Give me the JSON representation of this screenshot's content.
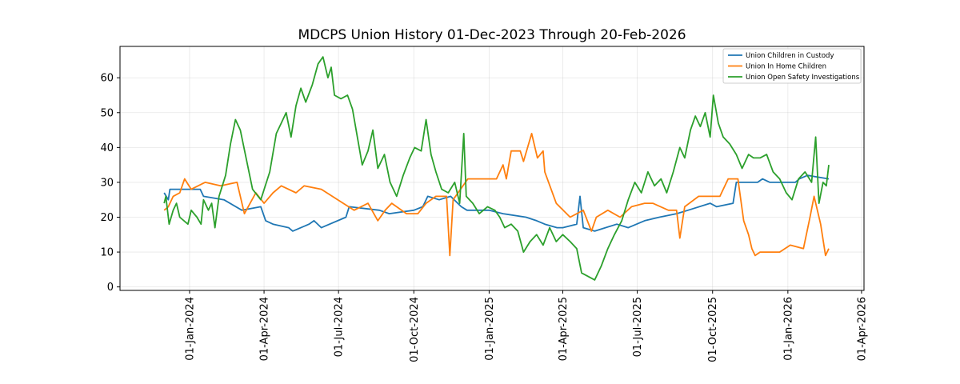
{
  "chart_data": {
    "type": "line",
    "title": "MDCPS Union History 01-Dec-2023 Through 20-Feb-2026",
    "xlabel": "",
    "ylabel": "",
    "x_axis": "date",
    "xlim": [
      "2023-10-08",
      "2026-04-04"
    ],
    "ylim": [
      -1,
      69
    ],
    "y_ticks": [
      0,
      10,
      20,
      30,
      40,
      50,
      60
    ],
    "x_ticks": [
      {
        "date": "2024-01-01",
        "label": "01-Jan-2024"
      },
      {
        "date": "2024-04-01",
        "label": "01-Apr-2024"
      },
      {
        "date": "2024-07-01",
        "label": "01-Jul-2024"
      },
      {
        "date": "2024-10-01",
        "label": "01-Oct-2024"
      },
      {
        "date": "2025-01-01",
        "label": "01-Jan-2025"
      },
      {
        "date": "2025-04-01",
        "label": "01-Apr-2025"
      },
      {
        "date": "2025-07-01",
        "label": "01-Jul-2025"
      },
      {
        "date": "2025-10-01",
        "label": "01-Oct-2025"
      },
      {
        "date": "2026-01-01",
        "label": "01-Jan-2026"
      },
      {
        "date": "2026-04-01",
        "label": "01-Apr-2026"
      }
    ],
    "grid": true,
    "legend_position": "top-right",
    "series": [
      {
        "name": "Union Children in Custody",
        "color": "#1f77b4",
        "points": [
          [
            "2023-12-01",
            27
          ],
          [
            "2023-12-06",
            25
          ],
          [
            "2023-12-08",
            28
          ],
          [
            "2024-01-01",
            28
          ],
          [
            "2024-01-14",
            28
          ],
          [
            "2024-01-18",
            26
          ],
          [
            "2024-02-12",
            25
          ],
          [
            "2024-03-05",
            22
          ],
          [
            "2024-03-28",
            23
          ],
          [
            "2024-04-03",
            19
          ],
          [
            "2024-04-12",
            18
          ],
          [
            "2024-05-01",
            17
          ],
          [
            "2024-05-06",
            16
          ],
          [
            "2024-05-16",
            17
          ],
          [
            "2024-05-26",
            18
          ],
          [
            "2024-06-01",
            19
          ],
          [
            "2024-06-10",
            17
          ],
          [
            "2024-07-10",
            20
          ],
          [
            "2024-07-14",
            23
          ],
          [
            "2024-08-20",
            22
          ],
          [
            "2024-09-01",
            21
          ],
          [
            "2024-10-01",
            22
          ],
          [
            "2024-10-12",
            23
          ],
          [
            "2024-10-18",
            26
          ],
          [
            "2024-11-01",
            25
          ],
          [
            "2024-11-15",
            26
          ],
          [
            "2024-11-28",
            23
          ],
          [
            "2024-12-05",
            22
          ],
          [
            "2025-01-01",
            22
          ],
          [
            "2025-01-18",
            21
          ],
          [
            "2025-02-15",
            20
          ],
          [
            "2025-02-28",
            19
          ],
          [
            "2025-03-10",
            18
          ],
          [
            "2025-03-25",
            17
          ],
          [
            "2025-04-01",
            17
          ],
          [
            "2025-04-18",
            18
          ],
          [
            "2025-04-22",
            26
          ],
          [
            "2025-04-26",
            17
          ],
          [
            "2025-05-10",
            16
          ],
          [
            "2025-06-06",
            18
          ],
          [
            "2025-06-20",
            17
          ],
          [
            "2025-07-10",
            19
          ],
          [
            "2025-07-28",
            20
          ],
          [
            "2025-08-18",
            21
          ],
          [
            "2025-09-01",
            22
          ],
          [
            "2025-09-28",
            24
          ],
          [
            "2025-10-06",
            23
          ],
          [
            "2025-10-26",
            24
          ],
          [
            "2025-10-30",
            30
          ],
          [
            "2025-11-25",
            30
          ],
          [
            "2025-12-01",
            31
          ],
          [
            "2025-12-10",
            30
          ],
          [
            "2026-01-10",
            30
          ],
          [
            "2026-01-15",
            31
          ],
          [
            "2026-01-25",
            32
          ],
          [
            "2026-02-20",
            31
          ]
        ]
      },
      {
        "name": "Union In Home Children",
        "color": "#ff7f0e",
        "points": [
          [
            "2023-12-01",
            22
          ],
          [
            "2023-12-06",
            23
          ],
          [
            "2023-12-12",
            26
          ],
          [
            "2023-12-20",
            27
          ],
          [
            "2023-12-26",
            31
          ],
          [
            "2024-01-03",
            28
          ],
          [
            "2024-01-20",
            30
          ],
          [
            "2024-02-08",
            29
          ],
          [
            "2024-02-28",
            30
          ],
          [
            "2024-03-08",
            21
          ],
          [
            "2024-03-22",
            27
          ],
          [
            "2024-04-01",
            24
          ],
          [
            "2024-04-12",
            27
          ],
          [
            "2024-04-22",
            29
          ],
          [
            "2024-05-10",
            27
          ],
          [
            "2024-05-20",
            29
          ],
          [
            "2024-06-10",
            28
          ],
          [
            "2024-07-20",
            22
          ],
          [
            "2024-08-06",
            24
          ],
          [
            "2024-08-18",
            19
          ],
          [
            "2024-08-27",
            22
          ],
          [
            "2024-09-04",
            24
          ],
          [
            "2024-09-22",
            21
          ],
          [
            "2024-10-06",
            21
          ],
          [
            "2024-10-16",
            24
          ],
          [
            "2024-10-28",
            26
          ],
          [
            "2024-11-10",
            26
          ],
          [
            "2024-11-14",
            9
          ],
          [
            "2024-11-18",
            25
          ],
          [
            "2024-12-06",
            31
          ],
          [
            "2025-01-10",
            31
          ],
          [
            "2025-01-18",
            35
          ],
          [
            "2025-01-22",
            31
          ],
          [
            "2025-01-28",
            39
          ],
          [
            "2025-02-08",
            39
          ],
          [
            "2025-02-12",
            36
          ],
          [
            "2025-02-22",
            44
          ],
          [
            "2025-03-01",
            37
          ],
          [
            "2025-03-08",
            39
          ],
          [
            "2025-03-10",
            33
          ],
          [
            "2025-03-24",
            24
          ],
          [
            "2025-04-10",
            20
          ],
          [
            "2025-04-26",
            22
          ],
          [
            "2025-05-06",
            16
          ],
          [
            "2025-05-12",
            20
          ],
          [
            "2025-05-26",
            22
          ],
          [
            "2025-06-10",
            20
          ],
          [
            "2025-06-24",
            23
          ],
          [
            "2025-07-10",
            24
          ],
          [
            "2025-07-20",
            24
          ],
          [
            "2025-08-08",
            22
          ],
          [
            "2025-08-18",
            22
          ],
          [
            "2025-08-22",
            14
          ],
          [
            "2025-08-28",
            23
          ],
          [
            "2025-09-14",
            26
          ],
          [
            "2025-10-10",
            26
          ],
          [
            "2025-10-20",
            31
          ],
          [
            "2025-11-01",
            31
          ],
          [
            "2025-11-08",
            19
          ],
          [
            "2025-11-14",
            15
          ],
          [
            "2025-11-18",
            11
          ],
          [
            "2025-11-22",
            9
          ],
          [
            "2025-11-28",
            10
          ],
          [
            "2025-12-22",
            10
          ],
          [
            "2026-01-04",
            12
          ],
          [
            "2026-01-20",
            11
          ],
          [
            "2026-01-28",
            20
          ],
          [
            "2026-02-02",
            26
          ],
          [
            "2026-02-10",
            18
          ],
          [
            "2026-02-16",
            9
          ],
          [
            "2026-02-20",
            11
          ]
        ]
      },
      {
        "name": "Union Open Safety Investigations",
        "color": "#2ca02c",
        "points": [
          [
            "2023-12-01",
            24
          ],
          [
            "2023-12-03",
            26
          ],
          [
            "2023-12-07",
            18
          ],
          [
            "2023-12-12",
            22
          ],
          [
            "2023-12-16",
            24
          ],
          [
            "2023-12-20",
            20
          ],
          [
            "2023-12-30",
            18
          ],
          [
            "2024-01-03",
            22
          ],
          [
            "2024-01-10",
            20
          ],
          [
            "2024-01-15",
            18
          ],
          [
            "2024-01-18",
            25
          ],
          [
            "2024-01-24",
            22
          ],
          [
            "2024-01-28",
            24
          ],
          [
            "2024-02-01",
            17
          ],
          [
            "2024-02-06",
            26
          ],
          [
            "2024-02-14",
            32
          ],
          [
            "2024-02-20",
            41
          ],
          [
            "2024-02-26",
            48
          ],
          [
            "2024-03-03",
            45
          ],
          [
            "2024-03-10",
            37
          ],
          [
            "2024-03-18",
            28
          ],
          [
            "2024-03-28",
            25
          ],
          [
            "2024-04-08",
            33
          ],
          [
            "2024-04-16",
            44
          ],
          [
            "2024-04-22",
            47
          ],
          [
            "2024-04-28",
            50
          ],
          [
            "2024-05-04",
            43
          ],
          [
            "2024-05-10",
            52
          ],
          [
            "2024-05-16",
            57
          ],
          [
            "2024-05-22",
            53
          ],
          [
            "2024-05-30",
            58
          ],
          [
            "2024-06-06",
            64
          ],
          [
            "2024-06-12",
            66
          ],
          [
            "2024-06-18",
            60
          ],
          [
            "2024-06-22",
            63
          ],
          [
            "2024-06-26",
            55
          ],
          [
            "2024-07-04",
            54
          ],
          [
            "2024-07-12",
            55
          ],
          [
            "2024-07-18",
            51
          ],
          [
            "2024-07-24",
            43
          ],
          [
            "2024-07-30",
            35
          ],
          [
            "2024-08-06",
            39
          ],
          [
            "2024-08-12",
            45
          ],
          [
            "2024-08-18",
            34
          ],
          [
            "2024-08-26",
            38
          ],
          [
            "2024-09-02",
            30
          ],
          [
            "2024-09-10",
            26
          ],
          [
            "2024-09-18",
            32
          ],
          [
            "2024-09-26",
            37
          ],
          [
            "2024-10-02",
            40
          ],
          [
            "2024-10-10",
            39
          ],
          [
            "2024-10-16",
            48
          ],
          [
            "2024-10-22",
            38
          ],
          [
            "2024-10-28",
            33
          ],
          [
            "2024-11-04",
            28
          ],
          [
            "2024-11-12",
            27
          ],
          [
            "2024-11-20",
            30
          ],
          [
            "2024-11-26",
            24
          ],
          [
            "2024-12-01",
            44
          ],
          [
            "2024-12-04",
            26
          ],
          [
            "2024-12-12",
            24
          ],
          [
            "2024-12-20",
            21
          ],
          [
            "2024-12-30",
            23
          ],
          [
            "2025-01-08",
            22
          ],
          [
            "2025-01-14",
            20
          ],
          [
            "2025-01-20",
            17
          ],
          [
            "2025-01-28",
            18
          ],
          [
            "2025-02-05",
            16
          ],
          [
            "2025-02-12",
            10
          ],
          [
            "2025-02-20",
            13
          ],
          [
            "2025-02-28",
            15
          ],
          [
            "2025-03-08",
            12
          ],
          [
            "2025-03-16",
            17
          ],
          [
            "2025-03-24",
            13
          ],
          [
            "2025-04-01",
            15
          ],
          [
            "2025-04-10",
            13
          ],
          [
            "2025-04-18",
            11
          ],
          [
            "2025-04-24",
            4
          ],
          [
            "2025-05-02",
            3
          ],
          [
            "2025-05-10",
            2
          ],
          [
            "2025-05-18",
            6
          ],
          [
            "2025-05-26",
            11
          ],
          [
            "2025-06-03",
            15
          ],
          [
            "2025-06-12",
            19
          ],
          [
            "2025-06-20",
            25
          ],
          [
            "2025-06-28",
            30
          ],
          [
            "2025-07-06",
            27
          ],
          [
            "2025-07-14",
            33
          ],
          [
            "2025-07-22",
            29
          ],
          [
            "2025-07-30",
            31
          ],
          [
            "2025-08-06",
            27
          ],
          [
            "2025-08-14",
            33
          ],
          [
            "2025-08-22",
            40
          ],
          [
            "2025-08-28",
            37
          ],
          [
            "2025-09-04",
            45
          ],
          [
            "2025-09-10",
            49
          ],
          [
            "2025-09-16",
            46
          ],
          [
            "2025-09-22",
            50
          ],
          [
            "2025-09-28",
            43
          ],
          [
            "2025-10-02",
            55
          ],
          [
            "2025-10-08",
            47
          ],
          [
            "2025-10-14",
            43
          ],
          [
            "2025-10-22",
            41
          ],
          [
            "2025-10-30",
            38
          ],
          [
            "2025-11-06",
            34
          ],
          [
            "2025-11-14",
            38
          ],
          [
            "2025-11-20",
            37
          ],
          [
            "2025-11-28",
            37
          ],
          [
            "2025-12-06",
            38
          ],
          [
            "2025-12-14",
            33
          ],
          [
            "2025-12-22",
            31
          ],
          [
            "2025-12-30",
            27
          ],
          [
            "2026-01-06",
            25
          ],
          [
            "2026-01-14",
            31
          ],
          [
            "2026-01-22",
            33
          ],
          [
            "2026-01-30",
            30
          ],
          [
            "2026-02-04",
            43
          ],
          [
            "2026-02-08",
            24
          ],
          [
            "2026-02-13",
            30
          ],
          [
            "2026-02-17",
            29
          ],
          [
            "2026-02-20",
            35
          ]
        ]
      }
    ]
  }
}
